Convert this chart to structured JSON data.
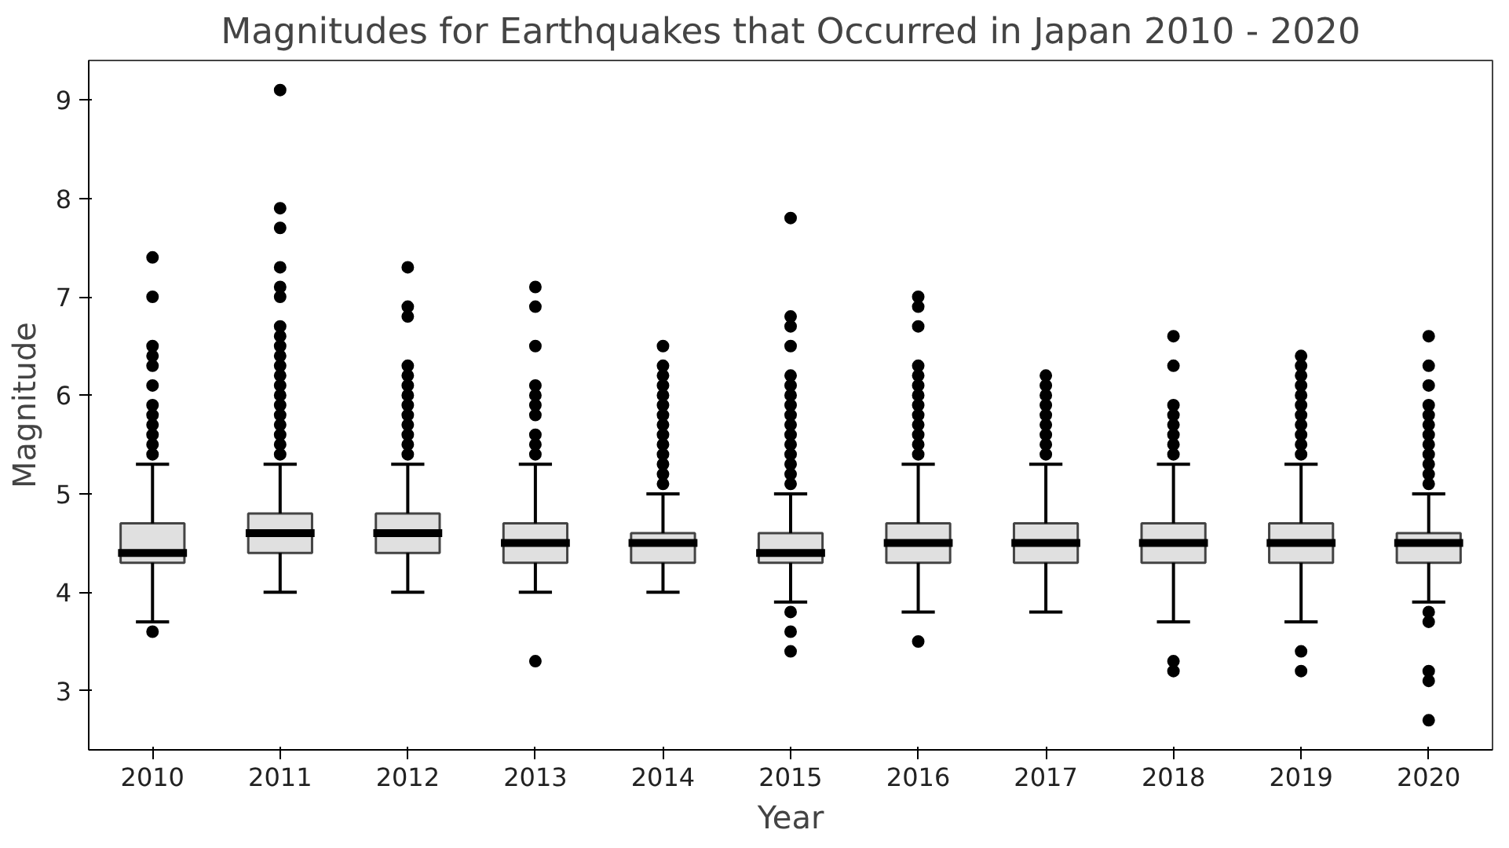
{
  "chart_data": {
    "type": "box",
    "title": "Magnitudes for Earthquakes that Occurred in Japan 2010 - 2020",
    "xlabel": "Year",
    "ylabel": "Magnitude",
    "categories": [
      "2010",
      "2011",
      "2012",
      "2013",
      "2014",
      "2015",
      "2016",
      "2017",
      "2018",
      "2019",
      "2020"
    ],
    "ylim": [
      2.4,
      9.4
    ],
    "yticks": [
      3,
      4,
      5,
      6,
      7,
      8,
      9
    ],
    "grid": false,
    "series": [
      {
        "color": "#e0e0e0",
        "boxes": [
          {
            "low": 3.7,
            "q1": 4.3,
            "median": 4.4,
            "q3": 4.7,
            "high": 5.3,
            "outliers": [
              3.6,
              5.4,
              5.5,
              5.6,
              5.7,
              5.8,
              5.9,
              6.1,
              6.3,
              6.4,
              6.5,
              7.0,
              7.4
            ]
          },
          {
            "low": 4.0,
            "q1": 4.4,
            "median": 4.6,
            "q3": 4.8,
            "high": 5.3,
            "outliers": [
              5.4,
              5.5,
              5.6,
              5.7,
              5.8,
              5.9,
              6.0,
              6.1,
              6.2,
              6.3,
              6.4,
              6.5,
              6.6,
              6.7,
              7.0,
              7.1,
              7.3,
              7.7,
              7.9,
              9.1
            ]
          },
          {
            "low": 4.0,
            "q1": 4.4,
            "median": 4.6,
            "q3": 4.8,
            "high": 5.3,
            "outliers": [
              5.4,
              5.5,
              5.6,
              5.7,
              5.8,
              5.9,
              6.0,
              6.1,
              6.2,
              6.3,
              6.8,
              6.9,
              7.3
            ]
          },
          {
            "low": 4.0,
            "q1": 4.3,
            "median": 4.5,
            "q3": 4.7,
            "high": 5.3,
            "outliers": [
              3.3,
              5.4,
              5.5,
              5.6,
              5.8,
              5.9,
              6.0,
              6.1,
              6.5,
              6.9,
              7.1
            ]
          },
          {
            "low": 4.0,
            "q1": 4.3,
            "median": 4.5,
            "q3": 4.6,
            "high": 5.0,
            "outliers": [
              5.1,
              5.2,
              5.3,
              5.4,
              5.5,
              5.6,
              5.7,
              5.8,
              5.9,
              6.0,
              6.1,
              6.2,
              6.3,
              6.5
            ]
          },
          {
            "low": 3.9,
            "q1": 4.3,
            "median": 4.4,
            "q3": 4.6,
            "high": 5.0,
            "outliers": [
              3.4,
              3.6,
              3.8,
              5.1,
              5.2,
              5.3,
              5.4,
              5.5,
              5.6,
              5.7,
              5.8,
              5.9,
              6.0,
              6.1,
              6.2,
              6.5,
              6.7,
              6.8,
              7.8
            ]
          },
          {
            "low": 3.8,
            "q1": 4.3,
            "median": 4.5,
            "q3": 4.7,
            "high": 5.3,
            "outliers": [
              3.5,
              5.4,
              5.5,
              5.6,
              5.7,
              5.8,
              5.9,
              6.0,
              6.1,
              6.2,
              6.3,
              6.7,
              6.9,
              7.0
            ]
          },
          {
            "low": 3.8,
            "q1": 4.3,
            "median": 4.5,
            "q3": 4.7,
            "high": 5.3,
            "outliers": [
              5.4,
              5.5,
              5.6,
              5.7,
              5.8,
              5.9,
              6.0,
              6.1,
              6.2
            ]
          },
          {
            "low": 3.7,
            "q1": 4.3,
            "median": 4.5,
            "q3": 4.7,
            "high": 5.3,
            "outliers": [
              3.2,
              3.3,
              5.4,
              5.5,
              5.6,
              5.7,
              5.8,
              5.9,
              6.3,
              6.6
            ]
          },
          {
            "low": 3.7,
            "q1": 4.3,
            "median": 4.5,
            "q3": 4.7,
            "high": 5.3,
            "outliers": [
              3.2,
              3.4,
              5.4,
              5.5,
              5.6,
              5.7,
              5.8,
              5.9,
              6.0,
              6.1,
              6.2,
              6.3,
              6.4
            ]
          },
          {
            "low": 3.9,
            "q1": 4.3,
            "median": 4.5,
            "q3": 4.6,
            "high": 5.0,
            "outliers": [
              2.7,
              3.1,
              3.2,
              3.7,
              3.8,
              5.1,
              5.2,
              5.3,
              5.4,
              5.5,
              5.6,
              5.7,
              5.8,
              5.9,
              6.1,
              6.3,
              6.6
            ]
          }
        ]
      }
    ]
  }
}
